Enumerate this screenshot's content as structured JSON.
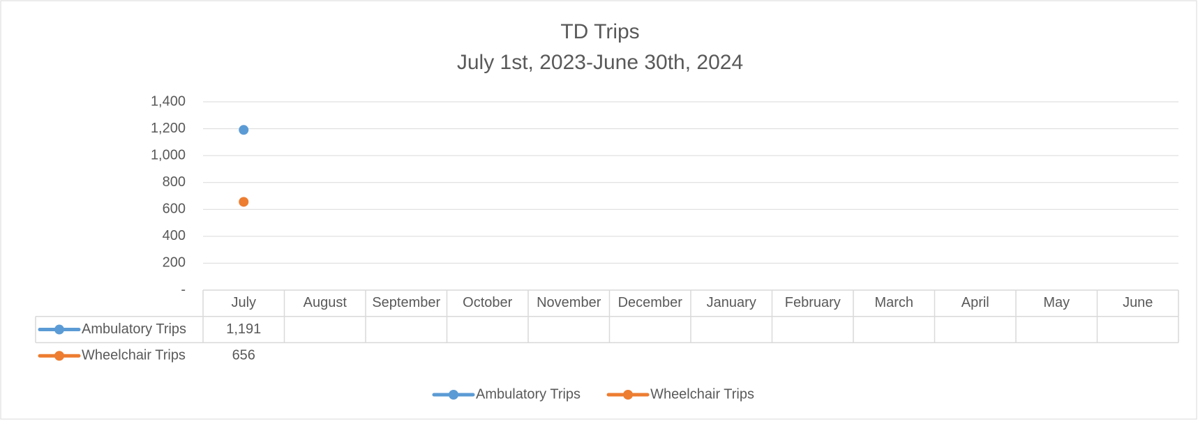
{
  "chart_data": {
    "type": "line",
    "title": "TD Trips",
    "subtitle": "July 1st, 2023-June 30th, 2024",
    "categories": [
      "July",
      "August",
      "September",
      "October",
      "November",
      "December",
      "January",
      "February",
      "March",
      "April",
      "May",
      "June"
    ],
    "series": [
      {
        "name": "Ambulatory Trips",
        "color": "#5b9bd5",
        "values": [
          1191,
          null,
          null,
          null,
          null,
          null,
          null,
          null,
          null,
          null,
          null,
          null
        ],
        "value_labels": [
          "1,191",
          null,
          null,
          null,
          null,
          null,
          null,
          null,
          null,
          null,
          null,
          null
        ]
      },
      {
        "name": "Wheelchair Trips",
        "color": "#ed7d31",
        "values": [
          656,
          null,
          null,
          null,
          null,
          null,
          null,
          null,
          null,
          null,
          null,
          null
        ]
      }
    ],
    "ylim": [
      0,
      1400
    ],
    "yticks": [
      {
        "value": 0,
        "label": "-"
      },
      200,
      400,
      600,
      800,
      {
        "value": 1000,
        "label": "1,000"
      },
      {
        "value": 1200,
        "label": "1,200"
      },
      {
        "value": 1400,
        "label": "1,400"
      }
    ],
    "grid": true,
    "legend": "bottom",
    "data_table": true
  }
}
